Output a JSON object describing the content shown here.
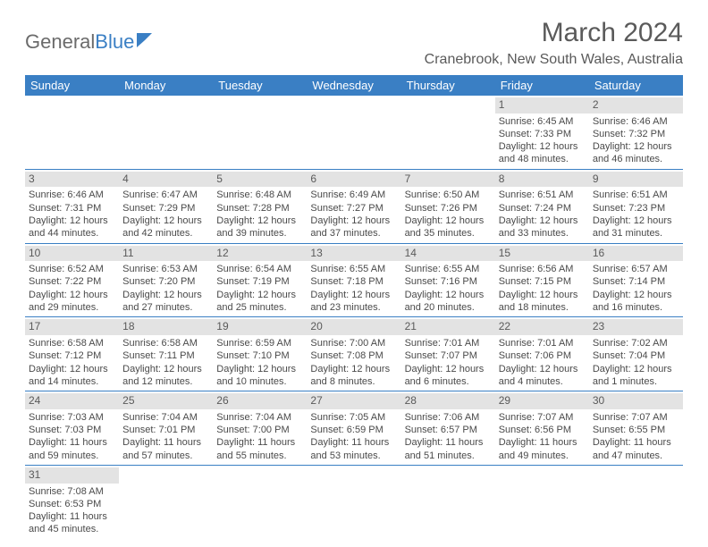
{
  "logo": {
    "text1": "General",
    "text2": "Blue"
  },
  "title": "March 2024",
  "location": "Cranebrook, New South Wales, Australia",
  "colors": {
    "header_bg": "#3a7fc4",
    "header_text": "#ffffff",
    "daynum_bg": "#e3e3e3",
    "text": "#4a4a4a",
    "title_text": "#5a5a5a",
    "rule": "#3a7fc4"
  },
  "daysOfWeek": [
    "Sunday",
    "Monday",
    "Tuesday",
    "Wednesday",
    "Thursday",
    "Friday",
    "Saturday"
  ],
  "grid": [
    [
      null,
      null,
      null,
      null,
      null,
      {
        "n": "1",
        "sr": "6:45 AM",
        "ss": "7:33 PM",
        "dlh": "12",
        "dlm": "48"
      },
      {
        "n": "2",
        "sr": "6:46 AM",
        "ss": "7:32 PM",
        "dlh": "12",
        "dlm": "46"
      }
    ],
    [
      {
        "n": "3",
        "sr": "6:46 AM",
        "ss": "7:31 PM",
        "dlh": "12",
        "dlm": "44"
      },
      {
        "n": "4",
        "sr": "6:47 AM",
        "ss": "7:29 PM",
        "dlh": "12",
        "dlm": "42"
      },
      {
        "n": "5",
        "sr": "6:48 AM",
        "ss": "7:28 PM",
        "dlh": "12",
        "dlm": "39"
      },
      {
        "n": "6",
        "sr": "6:49 AM",
        "ss": "7:27 PM",
        "dlh": "12",
        "dlm": "37"
      },
      {
        "n": "7",
        "sr": "6:50 AM",
        "ss": "7:26 PM",
        "dlh": "12",
        "dlm": "35"
      },
      {
        "n": "8",
        "sr": "6:51 AM",
        "ss": "7:24 PM",
        "dlh": "12",
        "dlm": "33"
      },
      {
        "n": "9",
        "sr": "6:51 AM",
        "ss": "7:23 PM",
        "dlh": "12",
        "dlm": "31"
      }
    ],
    [
      {
        "n": "10",
        "sr": "6:52 AM",
        "ss": "7:22 PM",
        "dlh": "12",
        "dlm": "29"
      },
      {
        "n": "11",
        "sr": "6:53 AM",
        "ss": "7:20 PM",
        "dlh": "12",
        "dlm": "27"
      },
      {
        "n": "12",
        "sr": "6:54 AM",
        "ss": "7:19 PM",
        "dlh": "12",
        "dlm": "25"
      },
      {
        "n": "13",
        "sr": "6:55 AM",
        "ss": "7:18 PM",
        "dlh": "12",
        "dlm": "23"
      },
      {
        "n": "14",
        "sr": "6:55 AM",
        "ss": "7:16 PM",
        "dlh": "12",
        "dlm": "20"
      },
      {
        "n": "15",
        "sr": "6:56 AM",
        "ss": "7:15 PM",
        "dlh": "12",
        "dlm": "18"
      },
      {
        "n": "16",
        "sr": "6:57 AM",
        "ss": "7:14 PM",
        "dlh": "12",
        "dlm": "16"
      }
    ],
    [
      {
        "n": "17",
        "sr": "6:58 AM",
        "ss": "7:12 PM",
        "dlh": "12",
        "dlm": "14"
      },
      {
        "n": "18",
        "sr": "6:58 AM",
        "ss": "7:11 PM",
        "dlh": "12",
        "dlm": "12"
      },
      {
        "n": "19",
        "sr": "6:59 AM",
        "ss": "7:10 PM",
        "dlh": "12",
        "dlm": "10"
      },
      {
        "n": "20",
        "sr": "7:00 AM",
        "ss": "7:08 PM",
        "dlh": "12",
        "dlm": "8"
      },
      {
        "n": "21",
        "sr": "7:01 AM",
        "ss": "7:07 PM",
        "dlh": "12",
        "dlm": "6"
      },
      {
        "n": "22",
        "sr": "7:01 AM",
        "ss": "7:06 PM",
        "dlh": "12",
        "dlm": "4"
      },
      {
        "n": "23",
        "sr": "7:02 AM",
        "ss": "7:04 PM",
        "dlh": "12",
        "dlm": "1"
      }
    ],
    [
      {
        "n": "24",
        "sr": "7:03 AM",
        "ss": "7:03 PM",
        "dlh": "11",
        "dlm": "59"
      },
      {
        "n": "25",
        "sr": "7:04 AM",
        "ss": "7:01 PM",
        "dlh": "11",
        "dlm": "57"
      },
      {
        "n": "26",
        "sr": "7:04 AM",
        "ss": "7:00 PM",
        "dlh": "11",
        "dlm": "55"
      },
      {
        "n": "27",
        "sr": "7:05 AM",
        "ss": "6:59 PM",
        "dlh": "11",
        "dlm": "53"
      },
      {
        "n": "28",
        "sr": "7:06 AM",
        "ss": "6:57 PM",
        "dlh": "11",
        "dlm": "51"
      },
      {
        "n": "29",
        "sr": "7:07 AM",
        "ss": "6:56 PM",
        "dlh": "11",
        "dlm": "49"
      },
      {
        "n": "30",
        "sr": "7:07 AM",
        "ss": "6:55 PM",
        "dlh": "11",
        "dlm": "47"
      }
    ],
    [
      {
        "n": "31",
        "sr": "7:08 AM",
        "ss": "6:53 PM",
        "dlh": "11",
        "dlm": "45"
      },
      null,
      null,
      null,
      null,
      null,
      null
    ]
  ]
}
